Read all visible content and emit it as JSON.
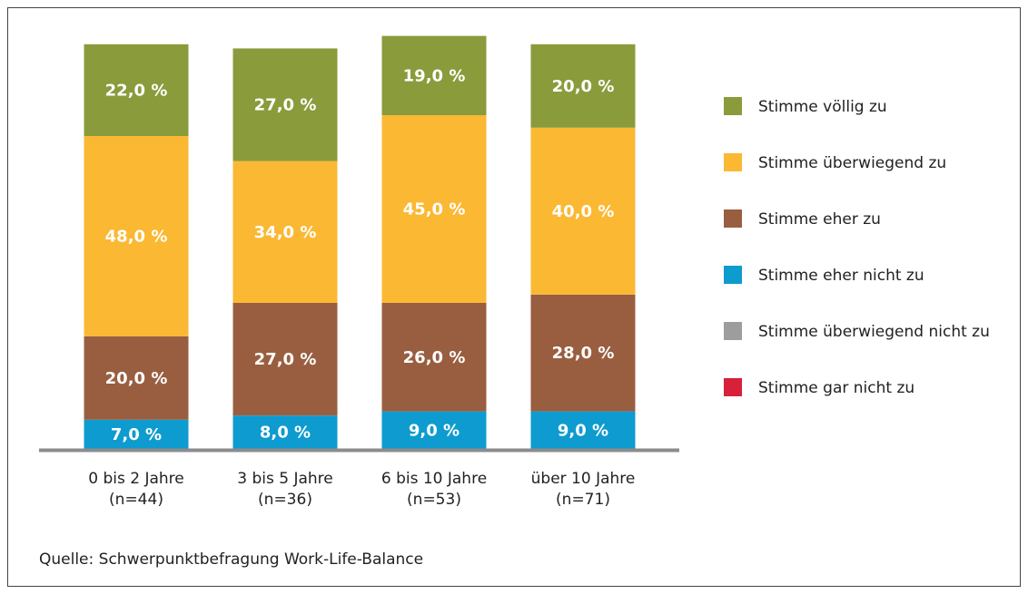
{
  "chart_data": {
    "type": "stacked_bar",
    "categories": [
      [
        "0 bis 2 Jahre",
        "(n=44)"
      ],
      [
        "3 bis 5 Jahre",
        "(n=36)"
      ],
      [
        "6 bis 10 Jahre",
        "(n=53)"
      ],
      [
        "über 10 Jahre",
        "(n=71)"
      ]
    ],
    "series": [
      {
        "name": "Stimme eher nicht zu",
        "color": "#0e9bcf",
        "values": [
          7,
          8,
          9,
          9
        ],
        "value_labels": [
          "7,0 %",
          "8,0 %",
          "9,0 %",
          "9,0 %"
        ]
      },
      {
        "name": "Stimme eher zu",
        "color": "#995e40",
        "values": [
          20,
          27,
          26,
          28
        ],
        "value_labels": [
          "20,0 %",
          "27,0 %",
          "26,0 %",
          "28,0 %"
        ]
      },
      {
        "name": "Stimme überwiegend zu",
        "color": "#fbb833",
        "values": [
          48,
          34,
          45,
          40
        ],
        "value_labels": [
          "48,0 %",
          "34,0 %",
          "45,0 %",
          "40,0 %"
        ]
      },
      {
        "name": "Stimme völlig zu",
        "color": "#8a9b3c",
        "values": [
          22,
          27,
          19,
          20
        ],
        "value_labels": [
          "22,0 %",
          "27,0 %",
          "19,0 %",
          "20,0 %"
        ]
      },
      {
        "name": "Stimme überwiegend nicht zu",
        "color": "#9d9d9d",
        "values": [
          null,
          null,
          null,
          null
        ]
      },
      {
        "name": "Stimme gar nicht zu",
        "color": "#d7203a",
        "values": [
          null,
          null,
          null,
          null
        ]
      }
    ],
    "legend_order": [
      3,
      2,
      1,
      0,
      4,
      5
    ],
    "ylim": [
      0,
      100
    ],
    "source": "Quelle: Schwerpunktbefragung Work-Life-Balance"
  }
}
